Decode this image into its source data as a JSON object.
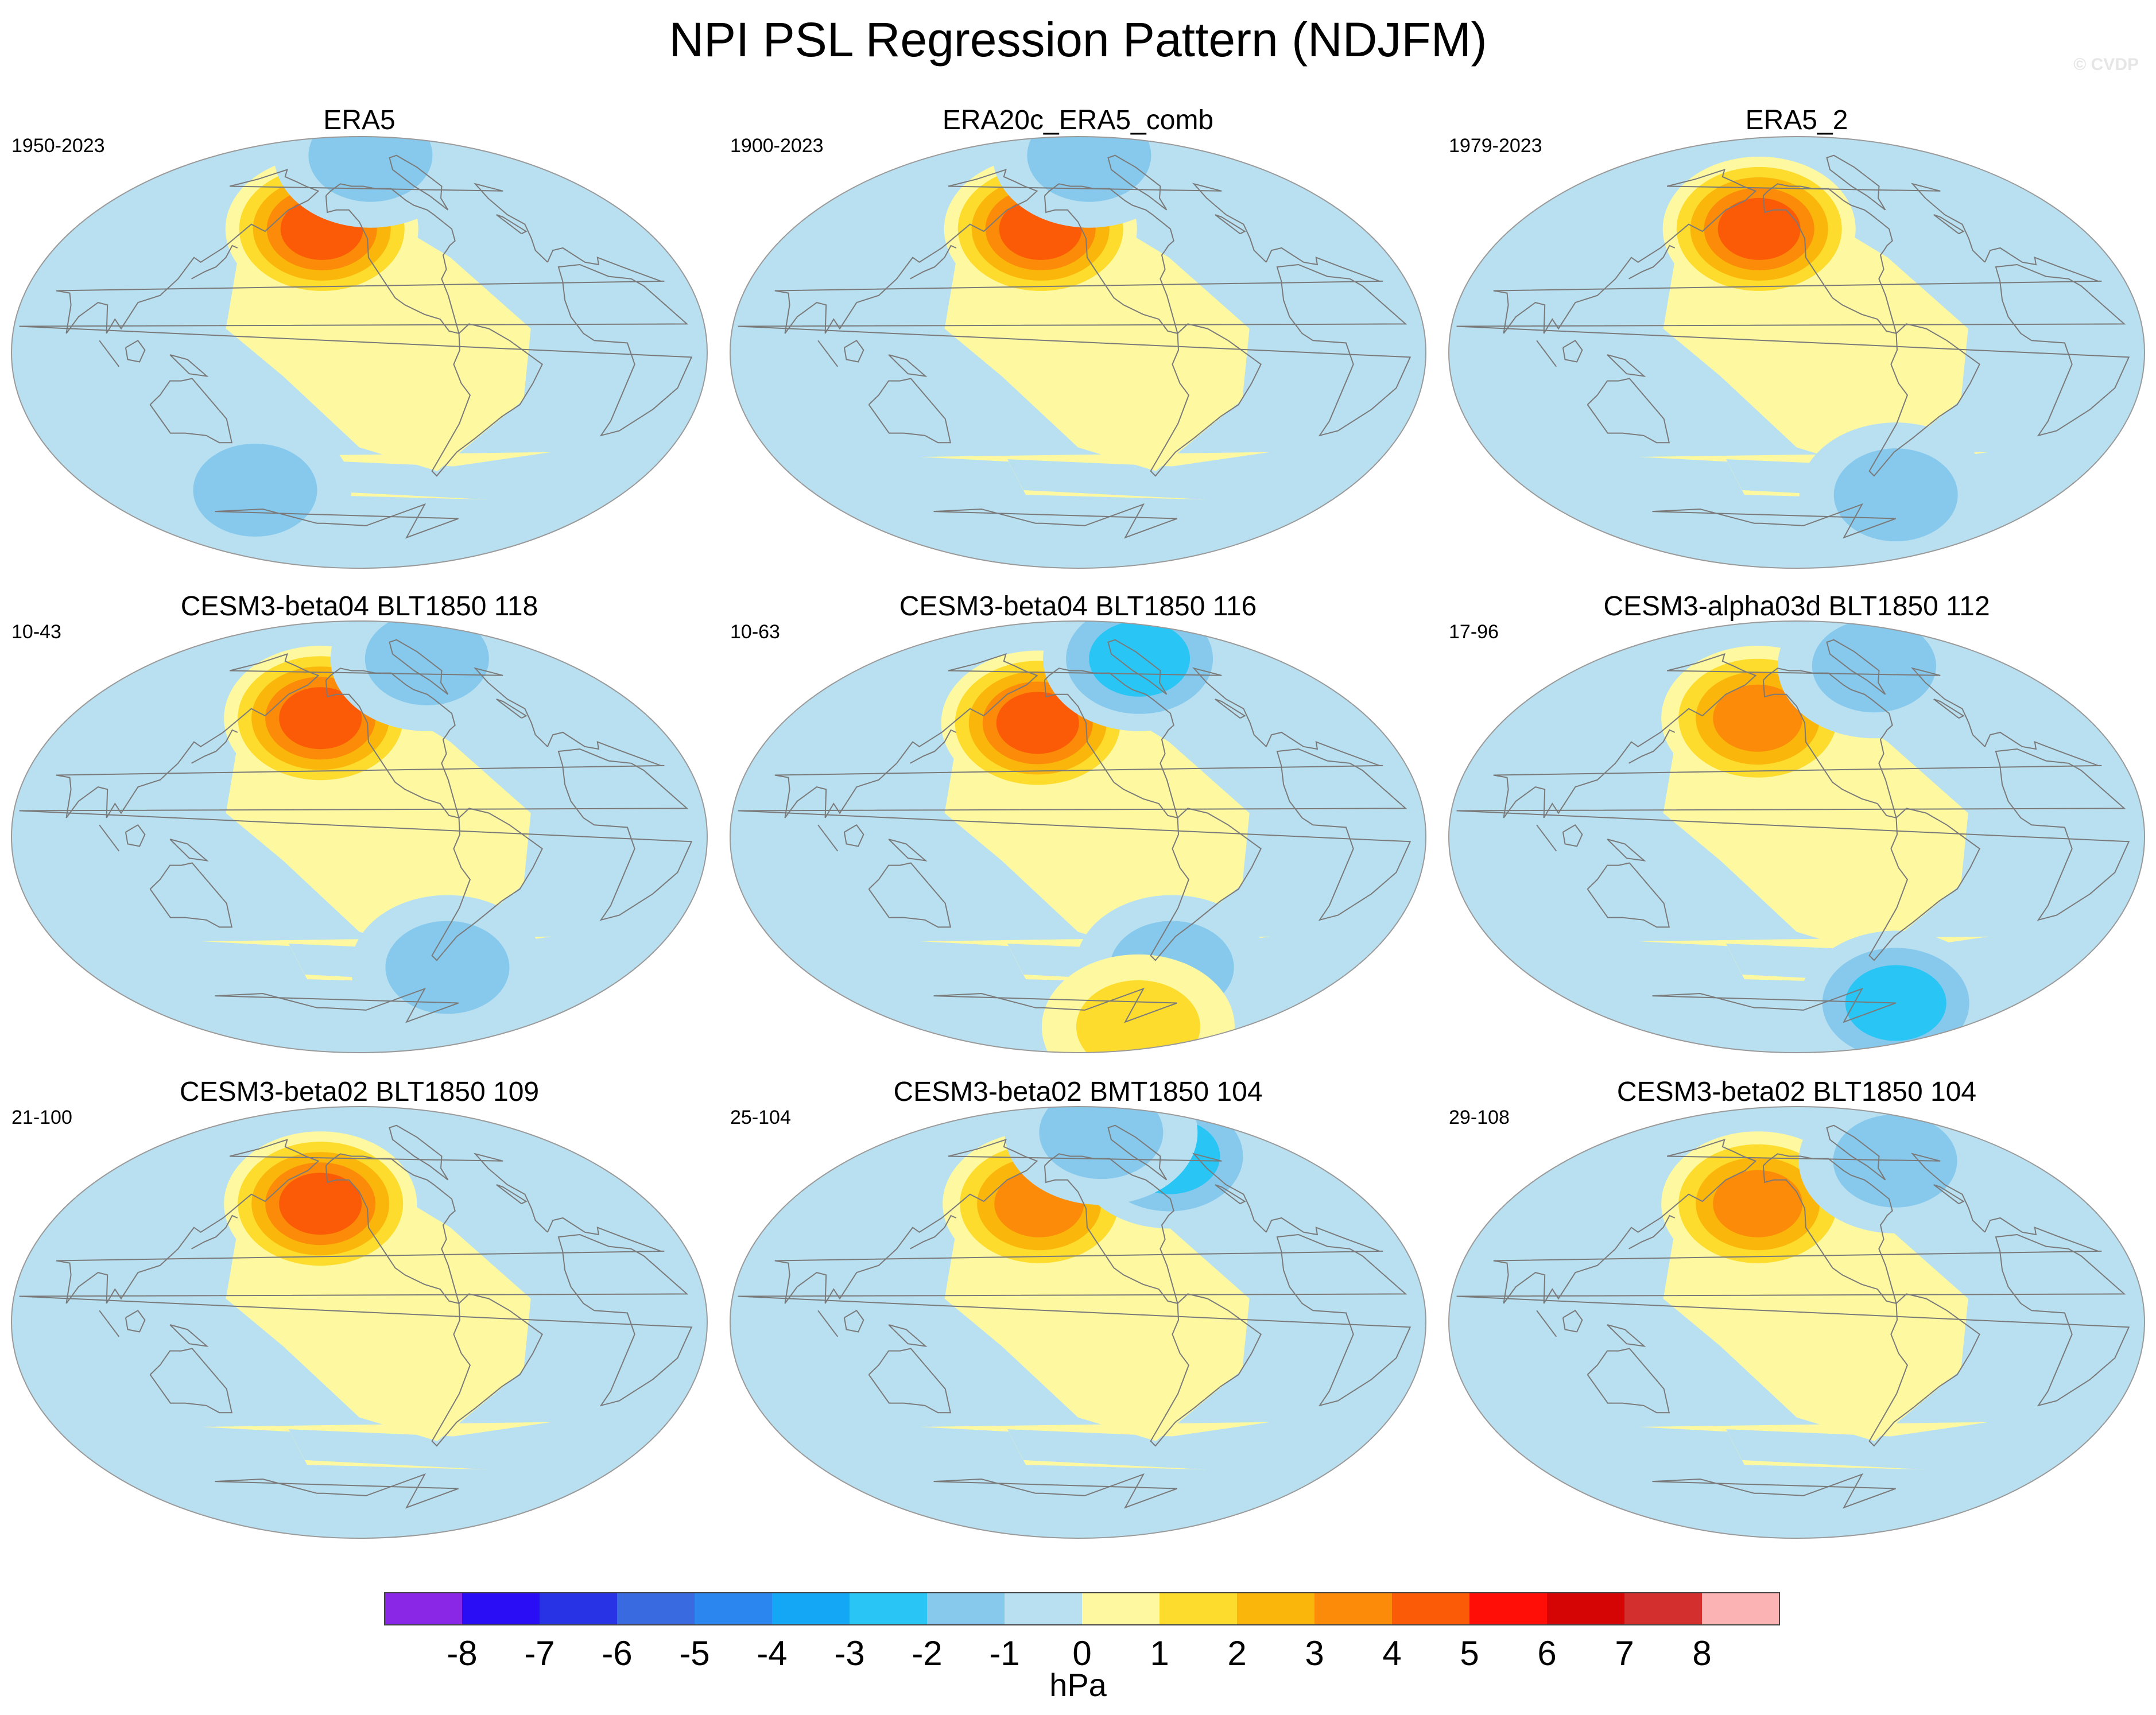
{
  "title": "NPI PSL Regression Pattern (NDJFM)",
  "watermark": "© CVDP",
  "chart_data": {
    "type": "heatmap",
    "projection": "Robinson, Pacific-centred",
    "field": "PSL regression onto NPI",
    "season": "NDJFM",
    "units": "hPa",
    "panels": [
      {
        "name": "ERA5",
        "period": "1950-2023",
        "centers": [
          {
            "lon": -160,
            "lat": 52,
            "value": 5
          },
          {
            "lon": -100,
            "lat": 83,
            "value": -2
          },
          {
            "lon": 135,
            "lat": -58,
            "value": -2
          }
        ]
      },
      {
        "name": "ERA20c_ERA5_comb",
        "period": "1900-2023",
        "centers": [
          {
            "lon": -160,
            "lat": 52,
            "value": 5
          },
          {
            "lon": -100,
            "lat": 83,
            "value": -2
          }
        ]
      },
      {
        "name": "ERA5_2",
        "period": "1979-2023",
        "centers": [
          {
            "lon": -160,
            "lat": 52,
            "value": 5
          },
          {
            "lon": -35,
            "lat": -60,
            "value": -2
          }
        ]
      },
      {
        "name": "CESM3-beta04 BLT1850 118",
        "period": "10-43",
        "centers": [
          {
            "lon": -160,
            "lat": 50,
            "value": 5
          },
          {
            "lon": -20,
            "lat": 75,
            "value": -2
          },
          {
            "lon": -55,
            "lat": -55,
            "value": -2
          }
        ]
      },
      {
        "name": "CESM3-beta04 BLT1850 116",
        "period": "10-63",
        "centers": [
          {
            "lon": -160,
            "lat": 48,
            "value": 5
          },
          {
            "lon": -30,
            "lat": 75,
            "value": -3
          },
          {
            "lon": -50,
            "lat": -55,
            "value": -2
          },
          {
            "lon": 0,
            "lat": -80,
            "value": 2
          }
        ]
      },
      {
        "name": "CESM3-alpha03d BLT1850 112",
        "period": "17-96",
        "centers": [
          {
            "lon": -160,
            "lat": 50,
            "value": 4
          },
          {
            "lon": -20,
            "lat": 72,
            "value": -2
          },
          {
            "lon": 0,
            "lat": -70,
            "value": -3
          }
        ]
      },
      {
        "name": "CESM3-beta02 BLT1850 109",
        "period": "21-100",
        "centers": [
          {
            "lon": -160,
            "lat": 50,
            "value": 5
          }
        ]
      },
      {
        "name": "CESM3-beta02 BMT1850 104",
        "period": "25-104",
        "centers": [
          {
            "lon": -160,
            "lat": 50,
            "value": 4
          },
          {
            "lon": -10,
            "lat": 70,
            "value": -3
          },
          {
            "lon": -80,
            "lat": 80,
            "value": -2
          }
        ]
      },
      {
        "name": "CESM3-beta02 BLT1850 104",
        "period": "29-108",
        "centers": [
          {
            "lon": -160,
            "lat": 50,
            "value": 4
          },
          {
            "lon": -10,
            "lat": 68,
            "value": -2
          }
        ]
      }
    ],
    "colorbar": {
      "ticks": [
        "-8",
        "-7",
        "-6",
        "-5",
        "-4",
        "-3",
        "-2",
        "-1",
        "0",
        "1",
        "2",
        "3",
        "4",
        "5",
        "6",
        "7",
        "8"
      ],
      "colors": [
        "#8a27e6",
        "#2a0cf5",
        "#2833e6",
        "#3a6ae0",
        "#2b86f0",
        "#14a7f5",
        "#28c5f5",
        "#87c9ec",
        "#b9e0f1",
        "#fef9a0",
        "#fddc2e",
        "#fbb60b",
        "#fb8b08",
        "#fb5a07",
        "#fe0e06",
        "#d60505",
        "#d32f2f",
        "#fcb3b3"
      ],
      "label": "hPa"
    }
  }
}
